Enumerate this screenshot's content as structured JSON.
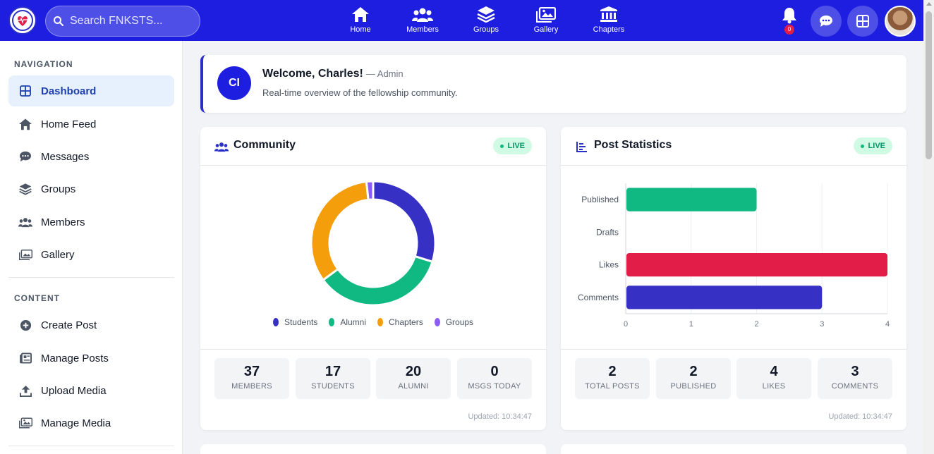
{
  "topbar": {
    "search_placeholder": "Search FNKSTS...",
    "nav": [
      {
        "label": "Home",
        "icon": "home-icon"
      },
      {
        "label": "Members",
        "icon": "users-icon"
      },
      {
        "label": "Groups",
        "icon": "layers-icon"
      },
      {
        "label": "Gallery",
        "icon": "images-icon"
      },
      {
        "label": "Chapters",
        "icon": "landmark-icon"
      }
    ],
    "notification_count": "0"
  },
  "sidebar": {
    "nav_title": "NAVIGATION",
    "nav_items": [
      {
        "label": "Dashboard",
        "icon": "grid-icon",
        "active": true
      },
      {
        "label": "Home Feed",
        "icon": "home-icon"
      },
      {
        "label": "Messages",
        "icon": "chat-icon"
      },
      {
        "label": "Groups",
        "icon": "layers-icon"
      },
      {
        "label": "Members",
        "icon": "users-icon"
      },
      {
        "label": "Gallery",
        "icon": "images-icon"
      }
    ],
    "content_title": "CONTENT",
    "content_items": [
      {
        "label": "Create Post",
        "icon": "plus-circle-icon"
      },
      {
        "label": "Manage Posts",
        "icon": "newspaper-icon"
      },
      {
        "label": "Upload Media",
        "icon": "upload-icon"
      },
      {
        "label": "Manage Media",
        "icon": "photo-stack-icon"
      }
    ]
  },
  "welcome": {
    "initials": "CI",
    "title": "Welcome, Charles!",
    "role": "— Admin",
    "subtitle": "Real-time overview of the fellowship community."
  },
  "community": {
    "title": "Community",
    "live": "LIVE",
    "stats": [
      {
        "value": "37",
        "label": "MEMBERS"
      },
      {
        "value": "17",
        "label": "STUDENTS"
      },
      {
        "value": "20",
        "label": "ALUMNI"
      },
      {
        "value": "0",
        "label": "MSGS TODAY"
      }
    ],
    "updated": "Updated: 10:34:47"
  },
  "post_stats": {
    "title": "Post Statistics",
    "live": "LIVE",
    "stats": [
      {
        "value": "2",
        "label": "TOTAL POSTS"
      },
      {
        "value": "2",
        "label": "PUBLISHED"
      },
      {
        "value": "4",
        "label": "LIKES"
      },
      {
        "value": "3",
        "label": "COMMENTS"
      }
    ],
    "updated": "Updated: 10:34:47"
  },
  "chart_data": [
    {
      "type": "pie",
      "categories": [
        "Students",
        "Alumni",
        "Chapters",
        "Groups"
      ],
      "values": [
        17,
        20,
        19,
        1
      ],
      "colors": [
        "#3730c4",
        "#10b981",
        "#f59e0b",
        "#8b5cf6"
      ],
      "donut": true,
      "legend": "bottom"
    },
    {
      "type": "bar",
      "orientation": "horizontal",
      "categories": [
        "Published",
        "Drafts",
        "Likes",
        "Comments"
      ],
      "values": [
        2,
        0,
        4,
        3
      ],
      "colors": [
        "#10b981",
        "#9ca3af",
        "#e11d48",
        "#3730c4"
      ],
      "xlim": [
        0,
        4
      ],
      "xticks": [
        "0",
        "1",
        "2",
        "3",
        "4"
      ],
      "grid": true
    }
  ]
}
